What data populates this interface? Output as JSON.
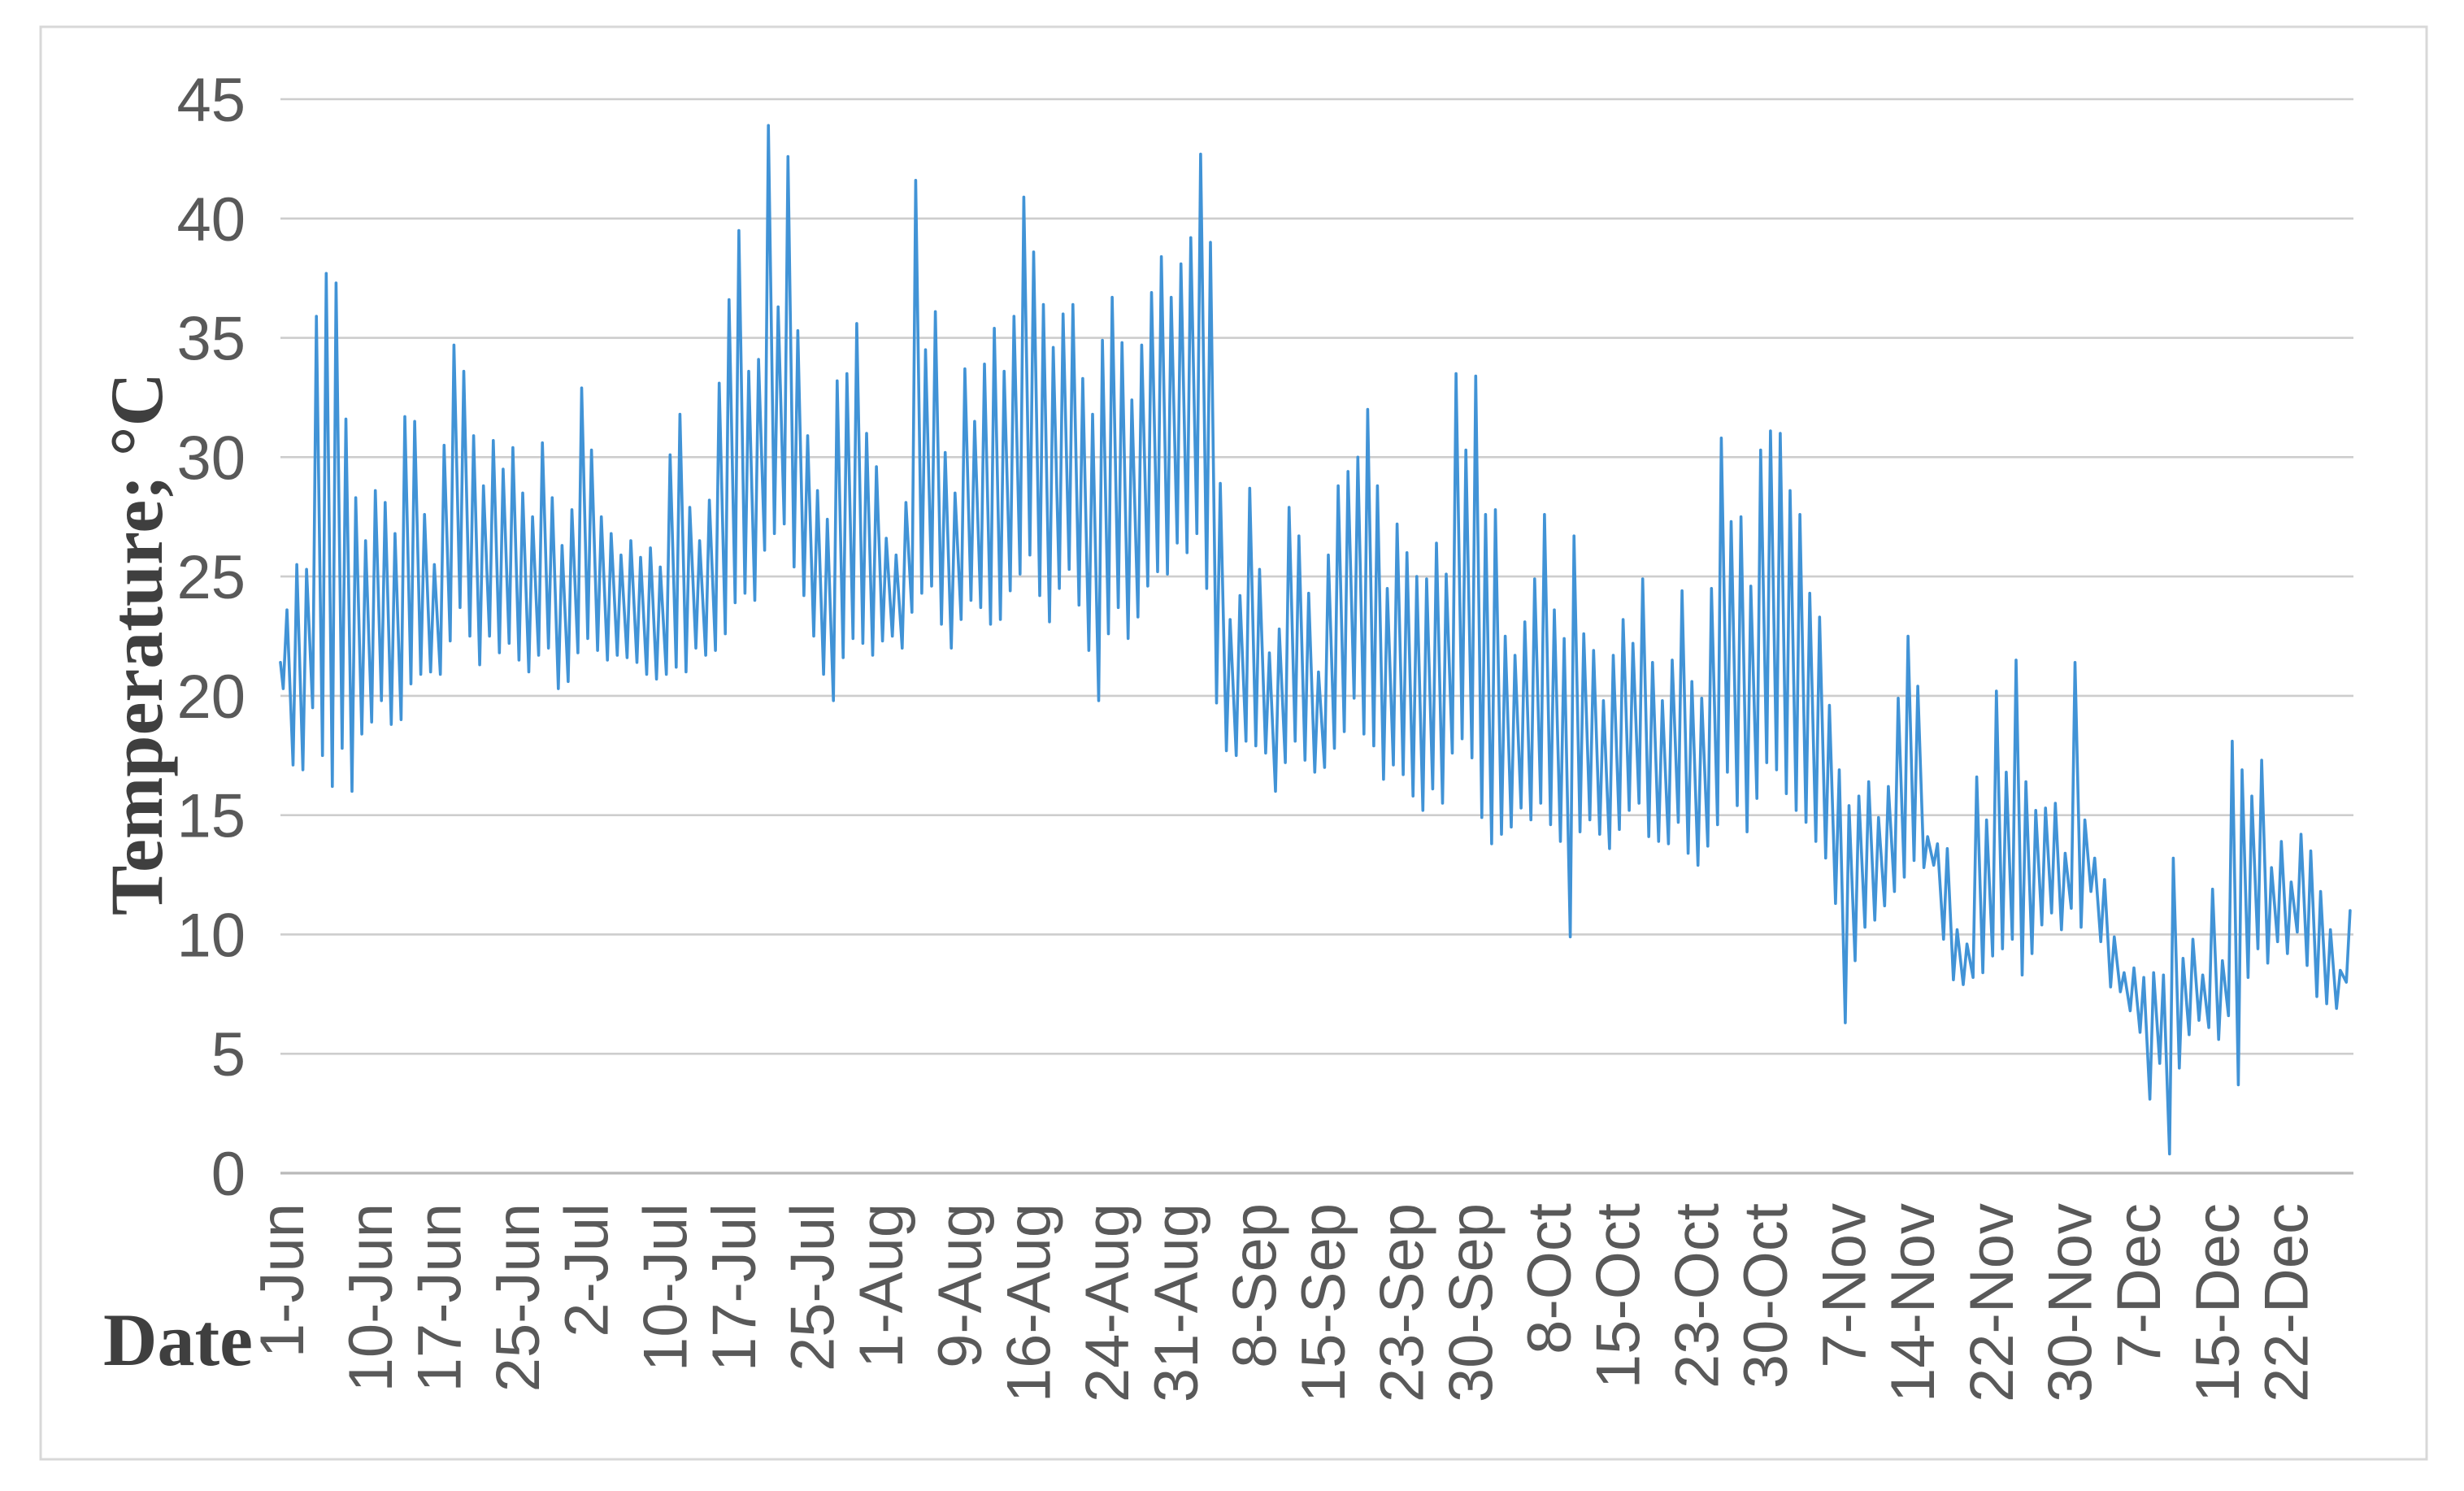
{
  "chart": {
    "x_axis_title": "Date",
    "y_axis_title": "Temperature; °C"
  },
  "chart_data": {
    "type": "line",
    "title": "",
    "xlabel": "Date",
    "ylabel": "Temperature; °C",
    "ylim": [
      0,
      45
    ],
    "y_ticks": [
      0,
      5,
      10,
      15,
      20,
      25,
      30,
      35,
      40,
      45
    ],
    "grid": true,
    "legend_position": "none",
    "line_color": "#4193d6",
    "grid_color": "#cdcdcd",
    "axis_line_color": "#b9b9b9",
    "border_color": "#d8d8d8",
    "tick_text_color": "#595959",
    "x_tick_labels": [
      "1-Jun",
      "10-Jun",
      "17-Jun",
      "25-Jun",
      "2-Jul",
      "10-Jul",
      "17-Jul",
      "25-Jul",
      "1-Aug",
      "9-Aug",
      "16-Aug",
      "24-Aug",
      "31-Aug",
      "8-Sep",
      "15-Sep",
      "23-Sep",
      "30-Sep",
      "8-Oct",
      "15-Oct",
      "23-Oct",
      "30-Oct",
      "7-Nov",
      "14-Nov",
      "22-Nov",
      "30-Nov",
      "7-Dec",
      "15-Dec",
      "22-Dec"
    ],
    "x_tick_day_index": [
      0,
      9,
      16,
      24,
      31,
      39,
      46,
      54,
      61,
      69,
      76,
      84,
      91,
      99,
      106,
      114,
      121,
      129,
      136,
      144,
      151,
      159,
      166,
      174,
      182,
      189,
      197,
      204
    ],
    "x_range_days": [
      0,
      211
    ],
    "encoding": "day index 0 = 1-Jun; series drawn as two points per day (morning minimum, afternoon maximum), values in °C estimated from plot",
    "start_value": 21.4,
    "daily_min": [
      20.3,
      17.1,
      16.9,
      19.5,
      17.5,
      16.2,
      17.8,
      16.0,
      18.4,
      18.9,
      19.8,
      18.8,
      19.0,
      20.5,
      20.9,
      21.0,
      20.9,
      22.3,
      23.7,
      22.5,
      21.3,
      22.5,
      21.8,
      22.2,
      21.5,
      21.0,
      21.7,
      22.0,
      20.3,
      20.6,
      21.8,
      22.4,
      21.9,
      21.5,
      21.7,
      21.6,
      21.4,
      20.9,
      20.7,
      20.9,
      21.2,
      21.0,
      22.0,
      21.7,
      21.9,
      22.6,
      23.9,
      24.3,
      24.0,
      26.1,
      26.8,
      27.2,
      25.4,
      24.2,
      22.5,
      20.9,
      19.8,
      21.6,
      22.4,
      22.2,
      21.7,
      22.3,
      22.5,
      22.0,
      23.5,
      24.3,
      24.6,
      23.0,
      22.0,
      23.2,
      24.0,
      23.7,
      23.0,
      23.2,
      24.4,
      25.1,
      25.9,
      24.2,
      23.1,
      24.5,
      25.3,
      23.8,
      21.9,
      19.8,
      22.6,
      23.7,
      22.4,
      23.3,
      24.6,
      25.2,
      25.1,
      26.4,
      26.0,
      26.8,
      24.5,
      19.7,
      17.7,
      17.5,
      18.1,
      17.9,
      17.6,
      16.0,
      17.2,
      18.1,
      17.3,
      16.8,
      17.0,
      17.8,
      18.5,
      19.9,
      18.4,
      17.9,
      16.5,
      17.1,
      16.7,
      15.8,
      15.2,
      16.1,
      15.5,
      17.6,
      18.2,
      17.4,
      14.9,
      13.8,
      14.2,
      14.5,
      15.3,
      14.8,
      15.5,
      14.6,
      13.9,
      9.9,
      14.3,
      14.8,
      14.2,
      13.6,
      14.4,
      15.2,
      15.5,
      14.1,
      13.9,
      13.8,
      14.7,
      13.4,
      12.9,
      13.7,
      14.6,
      16.8,
      15.4,
      14.3,
      15.7,
      17.2,
      16.9,
      15.9,
      15.2,
      14.7,
      13.9,
      13.2,
      11.3,
      6.3,
      8.9,
      10.3,
      10.6,
      11.2,
      11.8,
      12.4,
      13.1,
      12.8,
      12.9,
      9.8,
      8.1,
      7.9,
      8.2,
      8.4,
      9.1,
      9.4,
      9.8,
      8.3,
      9.2,
      10.4,
      10.9,
      10.2,
      11.1,
      10.3,
      11.8,
      9.7,
      7.8,
      7.6,
      6.8,
      5.9,
      3.1,
      4.6,
      0.8,
      4.4,
      5.8,
      6.4,
      6.1,
      5.6,
      6.6,
      3.7,
      8.2,
      9.4,
      8.8,
      9.7,
      9.2,
      10.1,
      8.7,
      7.4,
      7.1,
      6.9,
      8.0
    ],
    "daily_max": [
      23.6,
      25.5,
      25.3,
      35.9,
      37.7,
      37.3,
      31.6,
      28.3,
      26.5,
      28.6,
      28.1,
      26.8,
      31.7,
      31.5,
      27.6,
      25.5,
      30.5,
      34.7,
      33.6,
      30.9,
      28.8,
      30.7,
      29.5,
      30.4,
      28.5,
      27.5,
      30.6,
      28.3,
      26.3,
      27.8,
      32.9,
      30.3,
      27.5,
      26.8,
      25.9,
      26.5,
      25.8,
      26.2,
      25.4,
      30.1,
      31.8,
      27.9,
      26.5,
      28.2,
      33.1,
      36.6,
      39.5,
      33.6,
      34.1,
      43.9,
      36.3,
      42.6,
      35.3,
      30.9,
      28.6,
      27.4,
      33.2,
      33.5,
      35.6,
      31.0,
      29.6,
      26.6,
      25.9,
      28.1,
      41.6,
      34.5,
      36.1,
      30.2,
      28.5,
      33.7,
      31.5,
      33.9,
      35.4,
      33.6,
      35.9,
      40.9,
      38.6,
      36.4,
      34.6,
      36.0,
      36.4,
      33.3,
      31.8,
      34.9,
      36.7,
      34.8,
      32.4,
      34.7,
      36.9,
      38.4,
      36.7,
      38.1,
      39.2,
      42.7,
      39.0,
      28.9,
      23.2,
      24.2,
      28.7,
      25.3,
      21.8,
      22.8,
      27.9,
      26.7,
      24.3,
      21.0,
      25.9,
      28.8,
      29.4,
      30.0,
      32.0,
      28.8,
      24.5,
      27.2,
      26.0,
      25.0,
      24.9,
      26.4,
      25.1,
      33.5,
      30.3,
      33.4,
      27.6,
      27.8,
      22.5,
      21.7,
      23.1,
      24.9,
      27.6,
      23.6,
      22.4,
      26.7,
      22.6,
      21.9,
      19.8,
      21.7,
      23.2,
      22.2,
      24.9,
      21.4,
      19.8,
      21.5,
      24.4,
      20.6,
      19.9,
      24.5,
      30.8,
      27.3,
      27.5,
      24.6,
      30.3,
      31.1,
      31.0,
      28.6,
      27.6,
      24.3,
      23.3,
      19.6,
      16.9,
      15.4,
      15.8,
      16.4,
      14.9,
      16.2,
      19.9,
      22.5,
      20.4,
      14.1,
      13.8,
      13.6,
      10.2,
      9.6,
      16.6,
      14.8,
      20.2,
      16.8,
      21.5,
      16.4,
      15.2,
      15.3,
      15.5,
      13.4,
      21.4,
      14.8,
      13.2,
      12.3,
      9.9,
      8.4,
      8.6,
      8.2,
      8.4,
      8.3,
      13.2,
      9.0,
      9.8,
      8.3,
      11.9,
      8.9,
      18.1,
      16.9,
      15.8,
      17.3,
      12.8,
      13.9,
      12.2,
      14.2,
      13.5,
      11.8,
      10.2,
      8.5,
      11.0
    ]
  }
}
